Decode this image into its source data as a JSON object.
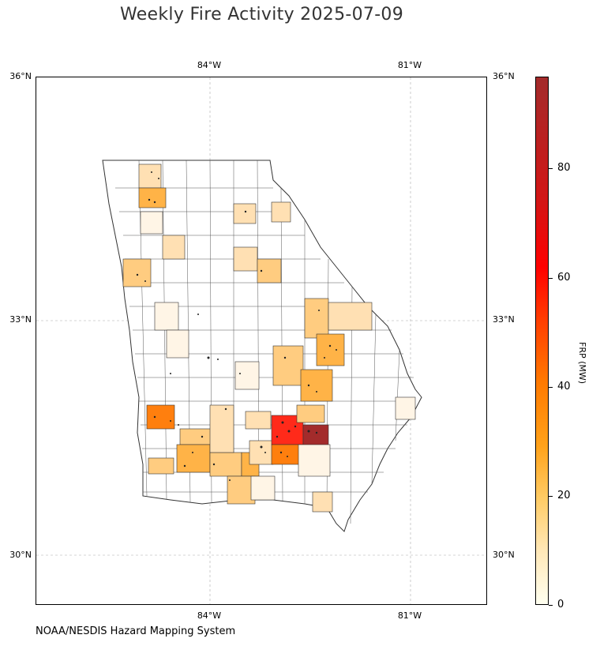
{
  "title": "Weekly Fire Activity 2025-07-09",
  "credit": "NOAA/NESDIS Hazard Mapping System",
  "axes": {
    "lat_labels": [
      "36°N",
      "33°N",
      "30°N"
    ],
    "lon_labels": [
      "84°W",
      "81°W"
    ]
  },
  "colorbar": {
    "label": "FRP (MW)",
    "ticks": [
      "0",
      "20",
      "40",
      "60",
      "80"
    ],
    "range": [
      0,
      95
    ],
    "colors": [
      "#fffff0",
      "#ffcc66",
      "#ffa21a",
      "#ff7a00",
      "#ff0000",
      "#a32b2b"
    ]
  },
  "map": {
    "region": "Georgia",
    "lat_range": [
      29.3,
      36.0
    ],
    "lon_range": [
      -86.6,
      -79.8
    ],
    "gridlines": true,
    "county_fill_legend": {
      "low": "#fff5e6",
      "light": "#ffe0b3",
      "medium": "#ffcc80",
      "high": "#ffb347",
      "very_high": "#ff7f0e",
      "extreme": "#ff2a1a",
      "max": "#a32b2b"
    },
    "highlighted_counties": [
      {
        "lon": -82.9,
        "lat": 31.55,
        "frp": 62
      },
      {
        "lon": -82.5,
        "lat": 31.55,
        "frp": 92
      },
      {
        "lon": -82.85,
        "lat": 31.25,
        "frp": 45
      },
      {
        "lon": -84.75,
        "lat": 31.75,
        "frp": 40
      },
      {
        "lon": -84.2,
        "lat": 31.25,
        "frp": 28
      },
      {
        "lon": -82.95,
        "lat": 32.7,
        "frp": 25
      },
      {
        "lon": -82.75,
        "lat": 32.2,
        "frp": 24
      },
      {
        "lon": -83.5,
        "lat": 33.6,
        "frp": 20
      },
      {
        "lon": -84.6,
        "lat": 34.5,
        "frp": 22
      },
      {
        "lon": -85.1,
        "lat": 33.6,
        "frp": 18
      }
    ]
  }
}
